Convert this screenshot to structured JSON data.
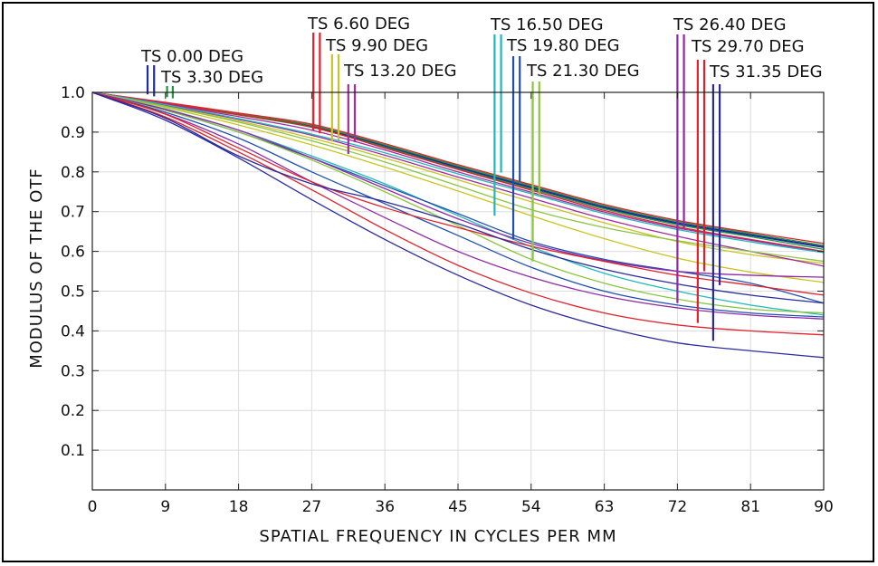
{
  "chart_data": {
    "type": "line",
    "title": "",
    "xlabel": "SPATIAL FREQUENCY IN CYCLES PER MM",
    "ylabel": "MODULUS OF THE OTF",
    "xlim": [
      0,
      90
    ],
    "ylim": [
      0,
      1
    ],
    "xticks": [
      0,
      9,
      18,
      27,
      36,
      45,
      54,
      63,
      72,
      81,
      90
    ],
    "yticks": [
      0.1,
      0.2,
      0.3,
      0.4,
      0.5,
      0.6,
      0.7,
      0.8,
      0.9,
      1.0
    ],
    "grid": true,
    "x": [
      0,
      9,
      18,
      27,
      36,
      45,
      54,
      63,
      72,
      81,
      90
    ],
    "series": [
      {
        "field": "TS 0.00 DEG",
        "color": "#1f2a9c",
        "values": [
          1.0,
          0.973,
          0.945,
          0.915,
          0.863,
          0.81,
          0.76,
          0.71,
          0.67,
          0.64,
          0.61
        ]
      },
      {
        "field": "TS 0.00 DEG",
        "color": "#1f2a9c",
        "values": [
          1.0,
          0.973,
          0.945,
          0.915,
          0.866,
          0.812,
          0.762,
          0.712,
          0.672,
          0.642,
          0.612
        ]
      },
      {
        "field": "TS 3.30 DEG",
        "color": "#1a9a3a",
        "values": [
          1.0,
          0.972,
          0.943,
          0.912,
          0.862,
          0.808,
          0.757,
          0.707,
          0.667,
          0.637,
          0.605
        ]
      },
      {
        "field": "TS 3.30 DEG",
        "color": "#1a9a3a",
        "values": [
          1.0,
          0.974,
          0.946,
          0.917,
          0.868,
          0.815,
          0.765,
          0.715,
          0.675,
          0.645,
          0.615
        ]
      },
      {
        "field": "TS 6.60 DEG",
        "color": "#e0202a",
        "values": [
          1.0,
          0.975,
          0.948,
          0.92,
          0.871,
          0.818,
          0.768,
          0.718,
          0.678,
          0.648,
          0.62
        ]
      },
      {
        "field": "TS 6.60 DEG",
        "color": "#e0202a",
        "values": [
          1.0,
          0.972,
          0.944,
          0.913,
          0.86,
          0.806,
          0.754,
          0.703,
          0.662,
          0.63,
          0.6
        ]
      },
      {
        "field": "TS 9.90 DEG",
        "color": "#c9c422",
        "values": [
          1.0,
          0.966,
          0.928,
          0.885,
          0.835,
          0.78,
          0.725,
          0.672,
          0.625,
          0.592,
          0.57
        ]
      },
      {
        "field": "TS 9.90 DEG",
        "color": "#c9c422",
        "values": [
          1.0,
          0.962,
          0.918,
          0.868,
          0.812,
          0.752,
          0.69,
          0.632,
          0.583,
          0.548,
          0.522
        ]
      },
      {
        "field": "TS 13.20 DEG",
        "color": "#a62aa0",
        "values": [
          1.0,
          0.971,
          0.939,
          0.905,
          0.855,
          0.8,
          0.749,
          0.699,
          0.659,
          0.628,
          0.598
        ]
      },
      {
        "field": "TS 13.20 DEG",
        "color": "#a62aa0",
        "values": [
          1.0,
          0.968,
          0.932,
          0.892,
          0.842,
          0.787,
          0.734,
          0.682,
          0.638,
          0.6,
          0.563
        ]
      },
      {
        "field": "TS 16.50 DEG",
        "color": "#20b8b8",
        "values": [
          1.0,
          0.969,
          0.934,
          0.895,
          0.848,
          0.795,
          0.745,
          0.695,
          0.655,
          0.624,
          0.597
        ]
      },
      {
        "field": "TS 16.50 DEG",
        "color": "#20b8b8",
        "values": [
          1.0,
          0.958,
          0.905,
          0.84,
          0.77,
          0.69,
          0.612,
          0.545,
          0.5,
          0.465,
          0.44
        ]
      },
      {
        "field": "TS 19.80 DEG",
        "color": "#1f4fb0",
        "values": [
          1.0,
          0.955,
          0.9,
          0.835,
          0.765,
          0.695,
          0.625,
          0.58,
          0.55,
          0.52,
          0.47
        ]
      },
      {
        "field": "TS 19.80 DEG",
        "color": "#1f4fb0",
        "values": [
          1.0,
          0.95,
          0.885,
          0.8,
          0.72,
          0.64,
          0.56,
          0.5,
          0.465,
          0.445,
          0.435
        ]
      },
      {
        "field": "TS 21.30 DEG",
        "color": "#8cc63f",
        "values": [
          1.0,
          0.965,
          0.925,
          0.878,
          0.825,
          0.765,
          0.705,
          0.66,
          0.627,
          0.6,
          0.575
        ]
      },
      {
        "field": "TS 21.30 DEG",
        "color": "#8cc63f",
        "values": [
          1.0,
          0.955,
          0.9,
          0.83,
          0.75,
          0.665,
          0.58,
          0.52,
          0.48,
          0.455,
          0.445
        ]
      },
      {
        "field": "TS 26.40 DEG",
        "color": "#8e2aa8",
        "values": [
          1.0,
          0.957,
          0.905,
          0.835,
          0.758,
          0.682,
          0.62,
          0.577,
          0.55,
          0.54,
          0.535
        ]
      },
      {
        "field": "TS 26.40 DEG",
        "color": "#8e2aa8",
        "values": [
          1.0,
          0.946,
          0.87,
          0.775,
          0.685,
          0.6,
          0.535,
          0.488,
          0.458,
          0.44,
          0.43
        ]
      },
      {
        "field": "TS 29.70 DEG",
        "color": "#e0202a",
        "values": [
          1.0,
          0.945,
          0.86,
          0.775,
          0.71,
          0.66,
          0.613,
          0.575,
          0.54,
          0.515,
          0.49
        ]
      },
      {
        "field": "TS 29.70 DEG",
        "color": "#e0202a",
        "values": [
          1.0,
          0.938,
          0.85,
          0.755,
          0.655,
          0.565,
          0.495,
          0.445,
          0.415,
          0.4,
          0.39
        ]
      },
      {
        "field": "TS 31.35 DEG",
        "color": "#2a2a9e",
        "values": [
          1.0,
          0.935,
          0.84,
          0.77,
          0.725,
          0.67,
          0.605,
          0.555,
          0.518,
          0.49,
          0.47
        ]
      },
      {
        "field": "TS 31.35 DEG",
        "color": "#2a2a9e",
        "values": [
          1.0,
          0.93,
          0.835,
          0.73,
          0.63,
          0.54,
          0.465,
          0.41,
          0.37,
          0.35,
          0.333
        ]
      }
    ],
    "field_tags": [
      {
        "text": "TS 0.00 DEG",
        "color": "#1f2a9c",
        "line_x": [
          6.8,
          7.6
        ],
        "line_bottom": [
          0.995,
          0.99
        ]
      },
      {
        "text": "TS 3.30 DEG",
        "color": "#1a9a3a",
        "line_x": [
          9.2,
          9.9
        ],
        "line_bottom": [
          0.988,
          0.985
        ]
      },
      {
        "text": "TS 6.60 DEG",
        "color": "#e0202a",
        "line_x": [
          27.2,
          28.0
        ],
        "line_bottom": [
          0.905,
          0.897
        ]
      },
      {
        "text": "TS 9.90 DEG",
        "color": "#c9c422",
        "line_x": [
          29.5,
          30.3
        ],
        "line_bottom": [
          0.876,
          0.88
        ]
      },
      {
        "text": "TS 13.20 DEG",
        "color": "#a62aa0",
        "line_x": [
          31.5,
          32.3
        ],
        "line_bottom": [
          0.845,
          0.875
        ]
      },
      {
        "text": "TS 16.50 DEG",
        "color": "#20b8b8",
        "line_x": [
          49.5,
          50.3
        ],
        "line_bottom": [
          0.69,
          0.798
        ]
      },
      {
        "text": "TS 19.80 DEG",
        "color": "#1f4fb0",
        "line_x": [
          51.8,
          52.6
        ],
        "line_bottom": [
          0.63,
          0.775
        ]
      },
      {
        "text": "TS 21.30 DEG",
        "color": "#8cc63f",
        "line_x": [
          54.2,
          55.0
        ],
        "line_bottom": [
          0.575,
          0.74
        ]
      },
      {
        "text": "TS 26.40 DEG",
        "color": "#8e2aa8",
        "line_x": [
          72.0,
          72.8
        ],
        "line_bottom": [
          0.47,
          0.66
        ]
      },
      {
        "text": "TS 29.70 DEG",
        "color": "#e0202a",
        "line_x": [
          74.5,
          75.3
        ],
        "line_bottom": [
          0.42,
          0.55
        ]
      },
      {
        "text": "TS 31.35 DEG",
        "color": "#2a2a9e",
        "line_x": [
          76.4,
          77.2
        ],
        "line_bottom": [
          0.375,
          0.515
        ]
      }
    ]
  }
}
